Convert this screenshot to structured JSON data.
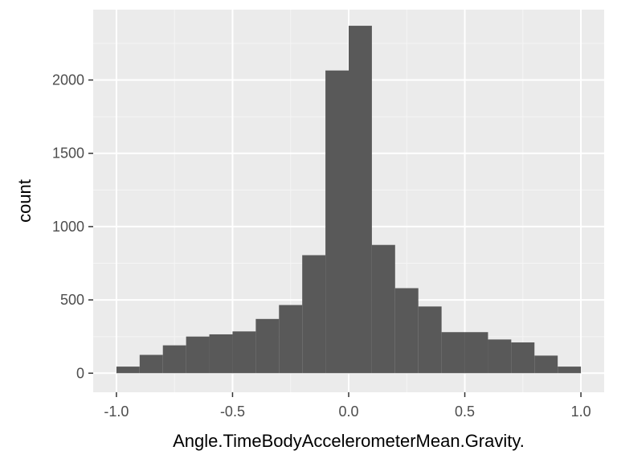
{
  "chart_data": {
    "type": "bar",
    "title": "",
    "xlabel": "Angle.TimeBodyAccelerometerMean.Gravity.",
    "ylabel": "count",
    "xlim": [
      -1.1,
      1.1
    ],
    "ylim": [
      0,
      2400
    ],
    "grid": true,
    "x_ticks": [
      -1.0,
      -0.5,
      0.0,
      0.5,
      1.0
    ],
    "x_tick_labels": [
      "-1.0",
      "-0.5",
      "0.0",
      "0.5",
      "1.0"
    ],
    "y_ticks": [
      0,
      500,
      1000,
      1500,
      2000
    ],
    "y_tick_labels": [
      "0",
      "500",
      "1000",
      "1500",
      "2000"
    ],
    "bin_width": 0.1,
    "bins": [
      {
        "x0": -1.0,
        "x1": -0.9,
        "count": 45
      },
      {
        "x0": -0.9,
        "x1": -0.8,
        "count": 125
      },
      {
        "x0": -0.8,
        "x1": -0.7,
        "count": 190
      },
      {
        "x0": -0.7,
        "x1": -0.6,
        "count": 250
      },
      {
        "x0": -0.6,
        "x1": -0.5,
        "count": 265
      },
      {
        "x0": -0.5,
        "x1": -0.4,
        "count": 285
      },
      {
        "x0": -0.4,
        "x1": -0.3,
        "count": 370
      },
      {
        "x0": -0.3,
        "x1": -0.2,
        "count": 465
      },
      {
        "x0": -0.2,
        "x1": -0.1,
        "count": 805
      },
      {
        "x0": -0.1,
        "x1": 0.0,
        "count": 2065
      },
      {
        "x0": 0.0,
        "x1": 0.1,
        "count": 2370
      },
      {
        "x0": 0.1,
        "x1": 0.2,
        "count": 875
      },
      {
        "x0": 0.2,
        "x1": 0.3,
        "count": 580
      },
      {
        "x0": 0.3,
        "x1": 0.4,
        "count": 455
      },
      {
        "x0": 0.4,
        "x1": 0.5,
        "count": 280
      },
      {
        "x0": 0.5,
        "x1": 0.6,
        "count": 280
      },
      {
        "x0": 0.6,
        "x1": 0.7,
        "count": 230
      },
      {
        "x0": 0.7,
        "x1": 0.8,
        "count": 210
      },
      {
        "x0": 0.8,
        "x1": 0.9,
        "count": 120
      },
      {
        "x0": 0.9,
        "x1": 1.0,
        "count": 45
      }
    ],
    "colors": {
      "bar": "#595959",
      "panel_background": "#ebebeb",
      "grid_major": "#ffffff",
      "grid_minor": "#f5f5f5",
      "tick_mark": "#333333",
      "tick_label": "#4d4d4d",
      "axis_title": "#000000"
    }
  }
}
